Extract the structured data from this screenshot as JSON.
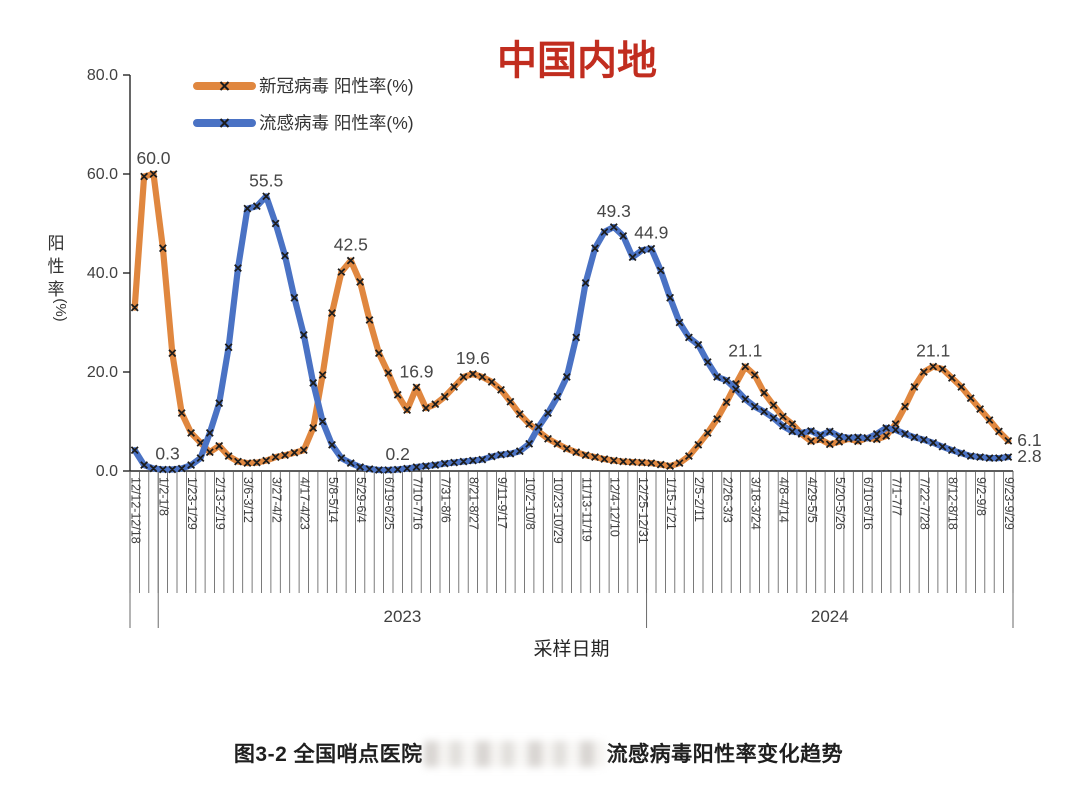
{
  "title": "中国内地",
  "colors": {
    "title_red": "#c12d1f",
    "covid_orange": "#e0873f",
    "flu_blue": "#4a72c4",
    "marker_black": "#1c1c1c",
    "axis_dark": "#262626",
    "tick_gray": "#595959",
    "label_gray": "#404040",
    "annotation_gray": "#474747"
  },
  "legend": {
    "items": [
      {
        "id": "covid",
        "label": "新冠病毒 阳性率(%)",
        "color": "#e0873f"
      },
      {
        "id": "flu",
        "label": "流感病毒 阳性率(%)",
        "color": "#4a72c4"
      }
    ]
  },
  "y_axis": {
    "title": "阳性率(%)",
    "title_cjk": "阳性率",
    "title_unit": "(%)",
    "tick_labels": [
      "0.0",
      "20.0",
      "40.0",
      "60.0",
      "80.0"
    ],
    "min": 0,
    "max": 80
  },
  "x_axis": {
    "title": "采样日期",
    "n_points": 94,
    "label_interval": 3,
    "tick_labels": [
      "12/12-12/18",
      "1/2-1/8",
      "1/23-1/29",
      "2/13-2/19",
      "3/6-3/12",
      "3/27-4/2",
      "4/17-4/23",
      "5/8-5/14",
      "5/29-6/4",
      "6/19-6/25",
      "7/10-7/16",
      "7/31-8/6",
      "8/21-8/27",
      "9/11-9/17",
      "10/2-10/8",
      "10/23-10/29",
      "11/13-11/19",
      "12/4-12/10",
      "12/25-12/31",
      "1/15-1/21",
      "2/5-2/11",
      "2/26-3/3",
      "3/18-3/24",
      "4/8-4/14",
      "4/29-5/5",
      "5/20-5/26",
      "6/10-6/16",
      "7/1-7/7",
      "7/22-7/28",
      "8/12-8/18",
      "9/2-9/8",
      "9/23-9/29"
    ],
    "year_groups": [
      {
        "label": "2023",
        "from_week": 3,
        "to_week": 55
      },
      {
        "label": "2024",
        "from_week": 55,
        "to_week": 94
      }
    ],
    "group_separator_weeks": [
      0,
      3,
      55,
      94
    ]
  },
  "chart_data": {
    "type": "line",
    "title": "中国内地",
    "xlabel": "采样日期",
    "ylabel": "阳性率(%)",
    "ylim": [
      0,
      80
    ],
    "grid": false,
    "legend_position": "top-left",
    "x_unit": "周 (weekly sampling ranges, labels every 3 weeks)",
    "series": [
      {
        "name": "新冠病毒 阳性率(%)",
        "color": "#e0873f",
        "marker": "x",
        "values": [
          33.0,
          59.5,
          60.0,
          45.0,
          23.8,
          11.7,
          7.7,
          5.7,
          3.8,
          5.1,
          3.0,
          1.9,
          1.6,
          1.7,
          2.1,
          2.8,
          3.2,
          3.7,
          4.2,
          8.7,
          19.4,
          31.9,
          40.2,
          42.5,
          38.2,
          30.5,
          23.8,
          19.8,
          15.4,
          12.3,
          16.9,
          12.7,
          13.5,
          15.0,
          17.0,
          19.0,
          19.6,
          19.0,
          18.0,
          16.4,
          14.0,
          11.5,
          9.5,
          8.0,
          6.5,
          5.5,
          4.5,
          3.8,
          3.2,
          2.8,
          2.4,
          2.1,
          1.9,
          1.8,
          1.7,
          1.6,
          1.3,
          1.0,
          1.6,
          3.0,
          5.3,
          7.7,
          10.5,
          13.9,
          17.6,
          21.1,
          19.4,
          15.8,
          13.3,
          11.0,
          9.5,
          7.5,
          6.0,
          6.4,
          5.4,
          5.9,
          6.5,
          6.0,
          6.7,
          6.4,
          7.1,
          9.5,
          13.0,
          17.0,
          20.0,
          21.1,
          20.6,
          18.8,
          17.0,
          14.7,
          12.5,
          10.3,
          8.0,
          6.1
        ]
      },
      {
        "name": "流感病毒 阳性率(%)",
        "color": "#4a72c4",
        "marker": "x",
        "values": [
          4.2,
          1.2,
          0.5,
          0.3,
          0.3,
          0.5,
          1.2,
          2.6,
          7.7,
          13.7,
          25.0,
          41.0,
          53.0,
          53.5,
          55.5,
          50.0,
          43.5,
          35.0,
          27.5,
          17.8,
          10.0,
          5.3,
          2.6,
          1.6,
          0.8,
          0.4,
          0.2,
          0.2,
          0.3,
          0.5,
          0.8,
          1.0,
          1.2,
          1.5,
          1.7,
          1.9,
          2.1,
          2.3,
          2.9,
          3.3,
          3.5,
          4.0,
          5.5,
          8.9,
          11.7,
          15.0,
          19.0,
          27.0,
          38.0,
          45.0,
          48.3,
          49.3,
          47.5,
          43.2,
          44.6,
          44.9,
          40.5,
          35.0,
          30.0,
          27.0,
          25.5,
          22.0,
          19.0,
          18.3,
          16.5,
          14.5,
          13.0,
          12.0,
          10.7,
          9.1,
          8.0,
          7.7,
          8.1,
          7.2,
          8.0,
          7.0,
          6.7,
          6.8,
          6.6,
          7.5,
          8.7,
          8.3,
          7.5,
          6.8,
          6.3,
          5.7,
          4.9,
          4.2,
          3.6,
          3.0,
          2.8,
          2.6,
          2.6,
          2.8
        ]
      }
    ],
    "annotations": [
      {
        "series": 0,
        "week": 2,
        "value": 60.0,
        "text": "60.0",
        "placement": "above"
      },
      {
        "series": 1,
        "week": 3.5,
        "value": 0.3,
        "text": "0.3",
        "placement": "above"
      },
      {
        "series": 1,
        "week": 14,
        "value": 55.5,
        "text": "55.5",
        "placement": "above"
      },
      {
        "series": 0,
        "week": 23,
        "value": 42.5,
        "text": "42.5",
        "placement": "above"
      },
      {
        "series": 1,
        "week": 28,
        "value": 0.2,
        "text": "0.2",
        "placement": "above"
      },
      {
        "series": 0,
        "week": 30,
        "value": 16.9,
        "text": "16.9",
        "placement": "above"
      },
      {
        "series": 0,
        "week": 36,
        "value": 19.6,
        "text": "19.6",
        "placement": "above"
      },
      {
        "series": 1,
        "week": 51,
        "value": 49.3,
        "text": "49.3",
        "placement": "above"
      },
      {
        "series": 1,
        "week": 55,
        "value": 44.9,
        "text": "44.9",
        "placement": "above"
      },
      {
        "series": 0,
        "week": 65,
        "value": 21.1,
        "text": "21.1",
        "placement": "above"
      },
      {
        "series": 0,
        "week": 85,
        "value": 21.1,
        "text": "21.1",
        "placement": "above"
      },
      {
        "series": 0,
        "week": 93,
        "value": 6.1,
        "text": "6.1",
        "placement": "right"
      },
      {
        "series": 1,
        "week": 93,
        "value": 2.8,
        "text": "2.8",
        "placement": "right"
      }
    ]
  },
  "caption": {
    "prefix": "图3-2 全国哨点医院",
    "redacted_middle": true,
    "suffix": "流感病毒阳性率变化趋势"
  }
}
